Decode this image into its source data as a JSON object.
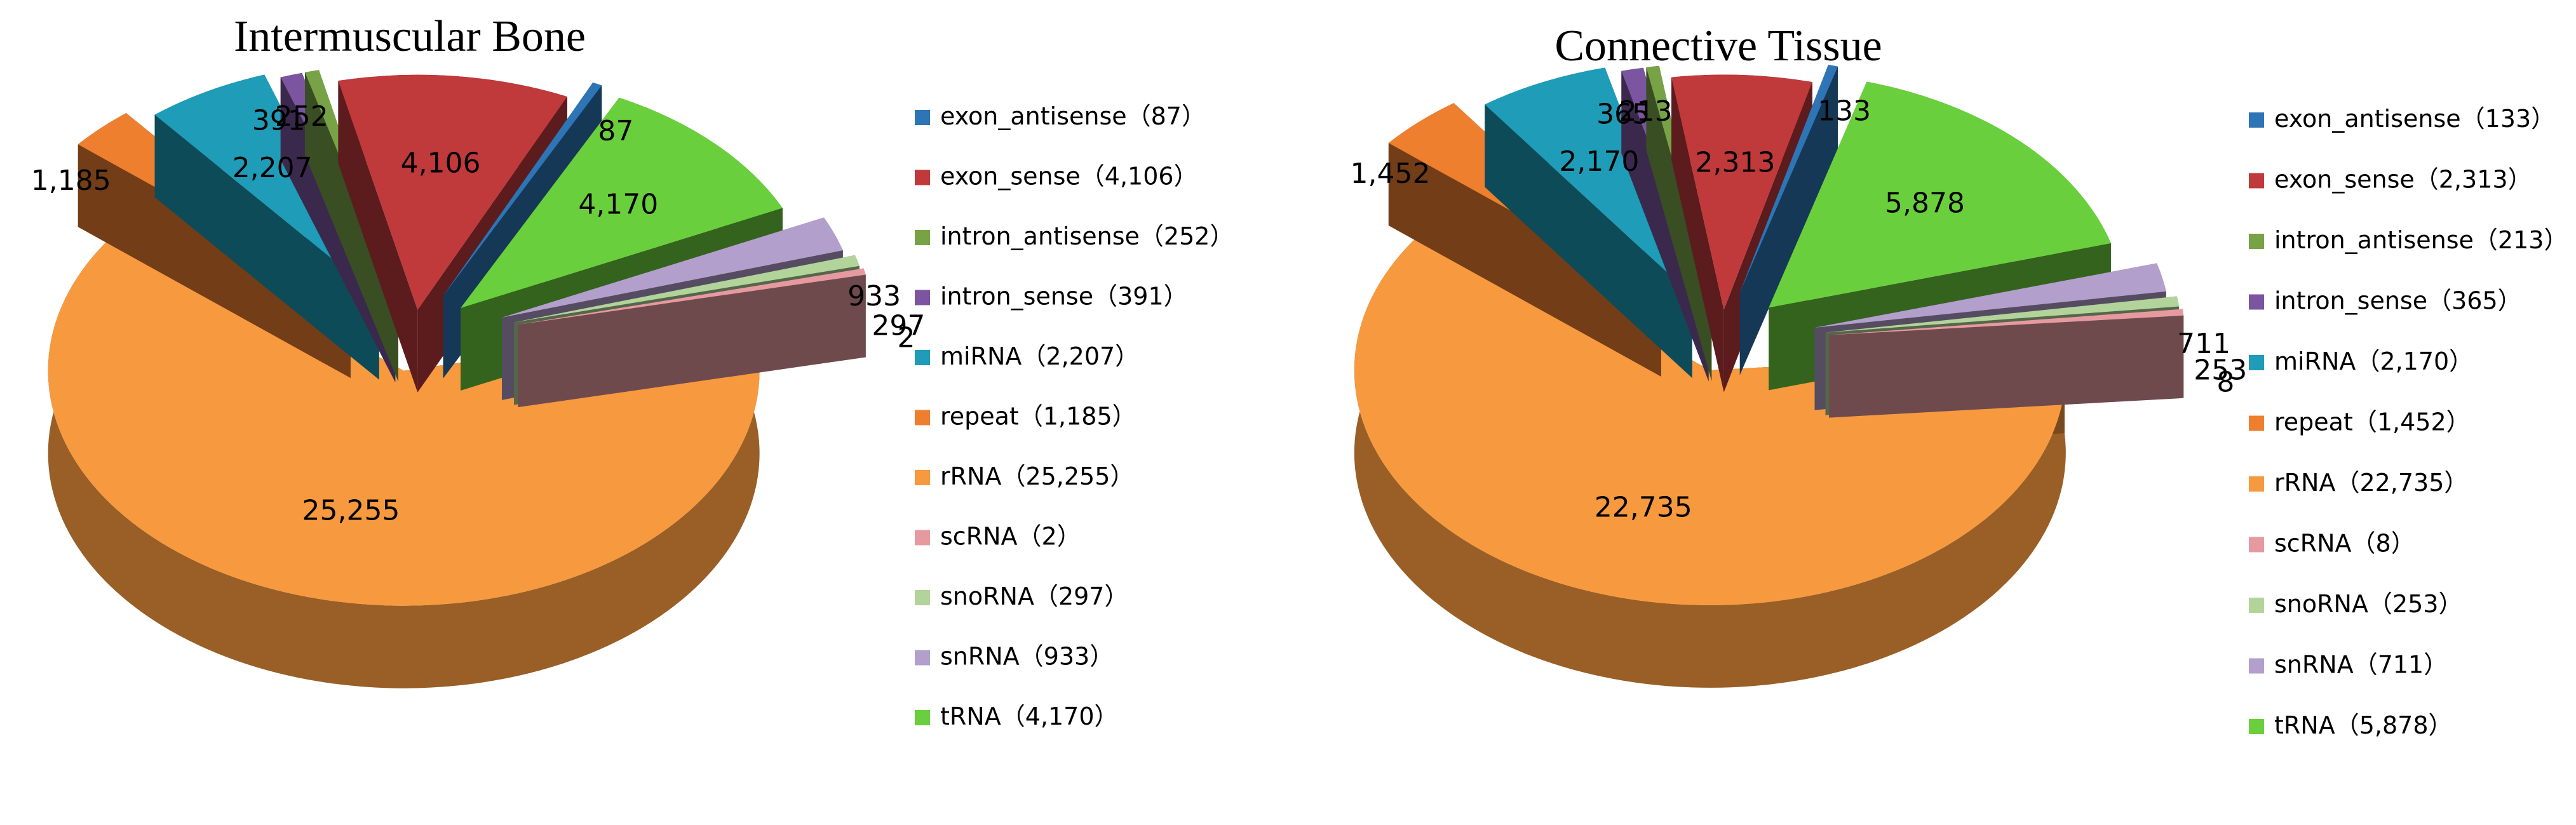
{
  "chart_data": [
    {
      "type": "pie",
      "title": "Intermuscular Bone",
      "categories": [
        "exon_antisense",
        "exon_sense",
        "intron_antisense",
        "intron_sense",
        "miRNA",
        "repeat",
        "rRNA",
        "scRNA",
        "snoRNA",
        "snRNA",
        "tRNA"
      ],
      "values": [
        87,
        4106,
        252,
        391,
        2207,
        1185,
        25255,
        2,
        297,
        933,
        4170
      ],
      "legend": [
        "exon_antisense（87）",
        "exon_sense（4,106）",
        "intron_antisense（252）",
        "intron_sense（391）",
        "miRNA（2,207）",
        "repeat（1,185）",
        "rRNA（25,255）",
        "scRNA（2）",
        "snoRNA（297）",
        "snRNA（933）",
        "tRNA（4,170）"
      ],
      "labels": [
        "87",
        "4,106",
        "252",
        "391",
        "2,207",
        "1,185",
        "25,255",
        "2",
        "297",
        "933",
        "4,170"
      ],
      "legend_position": "right",
      "style": "3d-exploded"
    },
    {
      "type": "pie",
      "title": "Connective Tissue",
      "categories": [
        "exon_antisense",
        "exon_sense",
        "intron_antisense",
        "intron_sense",
        "miRNA",
        "repeat",
        "rRNA",
        "scRNA",
        "snoRNA",
        "snRNA",
        "tRNA"
      ],
      "values": [
        133,
        2313,
        213,
        365,
        2170,
        1452,
        22735,
        8,
        253,
        711,
        5878
      ],
      "legend": [
        "exon_antisense（133）",
        "exon_sense（2,313）",
        "intron_antisense（213）",
        "intron_sense（365）",
        "miRNA（2,170）",
        "repeat（1,452）",
        "rRNA（22,735）",
        "scRNA（8）",
        "snoRNA（253）",
        "snRNA（711）",
        "tRNA（5,878）"
      ],
      "labels": [
        "133",
        "2,313",
        "213",
        "365",
        "2,170",
        "1,452",
        "22,735",
        "8",
        "253",
        "711",
        "5,878"
      ],
      "legend_position": "right",
      "style": "3d-exploded"
    }
  ],
  "colors": {
    "exon_antisense": "#2E75B6",
    "exon_sense": "#C0393B",
    "intron_antisense": "#77A346",
    "intron_sense": "#7B55A0",
    "miRNA": "#1E9CB8",
    "repeat": "#EE7F2F",
    "rRNA": "#F7993E",
    "scRNA": "#E69AA0",
    "snoRNA": "#B2D49A",
    "snRNA": "#B39FCC",
    "tRNA": "#6ACF3C"
  }
}
